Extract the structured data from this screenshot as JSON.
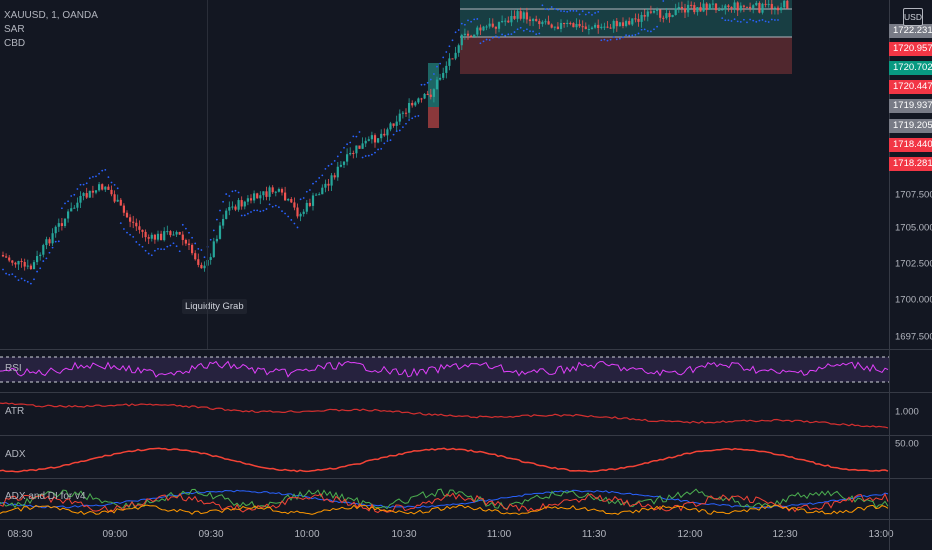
{
  "symbol": {
    "title": "XAUUSD, 1, OANDA",
    "indicators": [
      "SAR",
      "CBD"
    ],
    "currency": "USD"
  },
  "annotation": {
    "text": "Liquidity Grab"
  },
  "price_scale": {
    "labels": [
      "1707.500",
      "1705.000",
      "1702.500",
      "1700.000",
      "1697.500"
    ]
  },
  "price_tags": [
    {
      "text": "1722.231",
      "color": "#787b86"
    },
    {
      "text": "1720.957",
      "color": "#f23645"
    },
    {
      "text": "1720.702",
      "color": "#089981"
    },
    {
      "text": "1720.447",
      "color": "#f23645"
    },
    {
      "text": "1719.937",
      "color": "#787b86"
    },
    {
      "text": "1719.205",
      "color": "#787b86"
    },
    {
      "text": "1718.440",
      "color": "#f23645"
    },
    {
      "text": "1718.281",
      "color": "#f23645"
    }
  ],
  "panes": {
    "rsi": {
      "title": "RSI"
    },
    "atr": {
      "title": "ATR",
      "scale_label": "1.000"
    },
    "adx": {
      "title": "ADX",
      "scale_label": "50.00"
    },
    "adx_di": {
      "title": "ADX and DI for v4"
    }
  },
  "time_axis": {
    "labels": [
      "08:30",
      "09:00",
      "09:30",
      "10:00",
      "10:30",
      "11:00",
      "11:30",
      "12:00",
      "12:30",
      "13:00"
    ]
  },
  "colors": {
    "background": "#131722",
    "up": "#26a69a",
    "down": "#ef5350",
    "sar": "#2962ff",
    "rsi": "#e040fb",
    "atr": "#d32f2f",
    "adx": "#f44336"
  }
}
